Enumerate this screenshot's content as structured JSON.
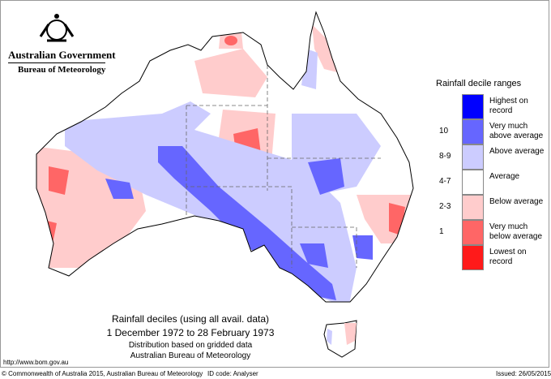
{
  "header": {
    "gov": "Australian Government",
    "bureau": "Bureau of Meteorology"
  },
  "legend": {
    "title": "Rainfall decile ranges",
    "items": [
      {
        "num": "",
        "label": "Highest on record",
        "color": "#0000ff"
      },
      {
        "num": "10",
        "label": "Very much above average",
        "color": "#6666ff"
      },
      {
        "num": "8-9",
        "label": "Above average",
        "color": "#ccccff"
      },
      {
        "num": "4-7",
        "label": "Average",
        "color": "#ffffff"
      },
      {
        "num": "2-3",
        "label": "Below average",
        "color": "#ffcccc"
      },
      {
        "num": "1",
        "label": "Very much below average",
        "color": "#ff6666"
      },
      {
        "num": "",
        "label": "Lowest on record",
        "color": "#ff1a1a"
      }
    ]
  },
  "caption": {
    "line1": "Rainfall deciles (using all avail. data)",
    "line2": "1 December 1972 to 28 February 1973",
    "line3": "Distribution based on gridded data",
    "line4": "Australian Bureau of Meteorology"
  },
  "footer": {
    "url": "http://www.bom.gov.au",
    "copyright": "© Commonwealth of Australia 2015, Australian Bureau of Meteorology",
    "id": "ID code: Analyser",
    "issued": "Issued: 26/05/2015"
  }
}
